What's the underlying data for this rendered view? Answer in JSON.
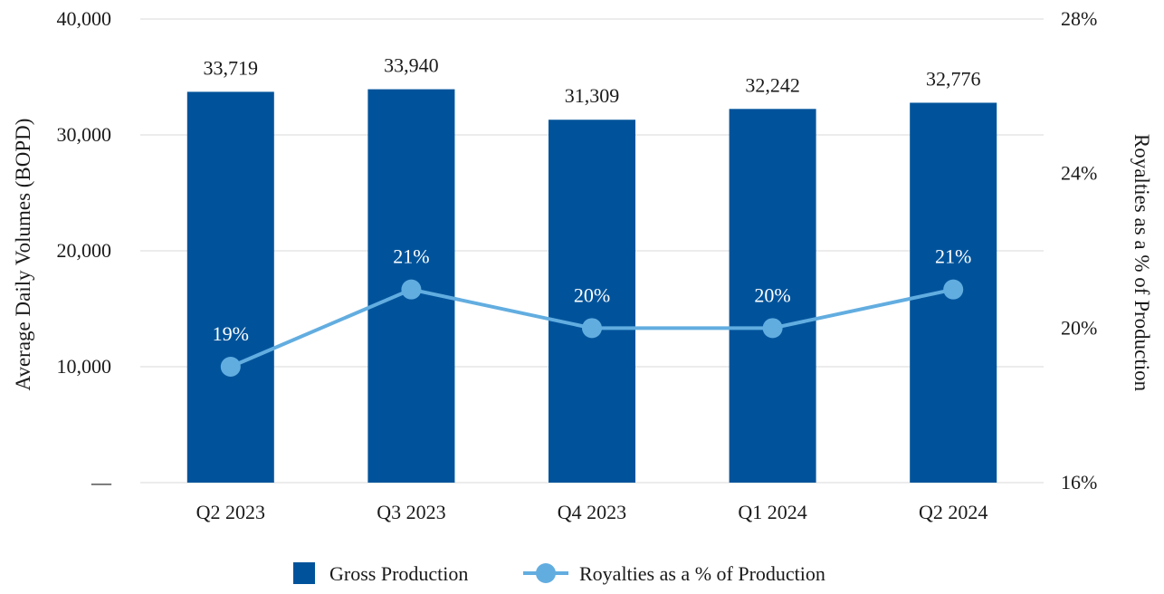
{
  "chart_data": {
    "type": "bar",
    "categories": [
      "Q2 2023",
      "Q3 2023",
      "Q4 2023",
      "Q1 2024",
      "Q2 2024"
    ],
    "series": [
      {
        "name": "Gross Production",
        "type": "bar",
        "axis": "left",
        "values": [
          33719,
          33940,
          31309,
          32242,
          32776
        ],
        "labels": [
          "33,719",
          "33,940",
          "31,309",
          "32,242",
          "32,776"
        ],
        "color": "#00539b"
      },
      {
        "name": "Royalties as a % of Production",
        "type": "line",
        "axis": "right",
        "values": [
          19,
          21,
          20,
          20,
          21
        ],
        "labels": [
          "19%",
          "21%",
          "20%",
          "20%",
          "21%"
        ],
        "color": "#62ade0"
      }
    ],
    "ylabel": "Average Daily Volumes (BOPD)",
    "y2label": "Royalties as a % of Production",
    "ylim": [
      0,
      40000
    ],
    "y2lim": [
      16,
      28
    ],
    "yticks": [
      "—",
      "10,000",
      "20,000",
      "30,000",
      "40,000"
    ],
    "y2ticks": [
      "16%",
      "20%",
      "24%",
      "28%"
    ],
    "grid": true,
    "legend_position": "bottom"
  }
}
